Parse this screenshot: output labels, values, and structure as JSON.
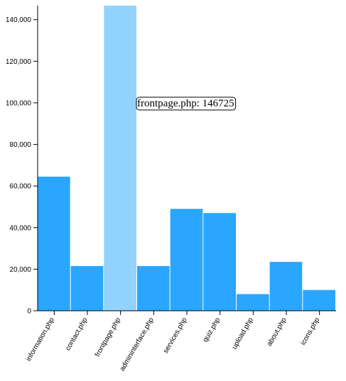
{
  "chart_data": {
    "type": "bar",
    "categories": [
      "information.php",
      "contact.php",
      "frontpage.php",
      "admininterface.php",
      "services.php",
      "quiz.php",
      "upload.php",
      "about.php",
      "icons.php"
    ],
    "values": [
      64500,
      21500,
      146725,
      21500,
      49000,
      47000,
      8000,
      23500,
      10000
    ],
    "ylim": [
      0,
      146725
    ],
    "yticks": [
      0,
      20000,
      40000,
      60000,
      80000,
      100000,
      120000,
      140000
    ],
    "ytick_labels": [
      "0",
      "20,000",
      "40,000",
      "60,000",
      "80,000",
      "100,000",
      "120,000",
      "140,000"
    ],
    "highlight_index": 2,
    "tooltip": "frontpage.php: 146725",
    "grid": false,
    "colors": {
      "bar": "#2aa6ff",
      "highlight": "#92d2ff",
      "axis": "#000000"
    }
  }
}
